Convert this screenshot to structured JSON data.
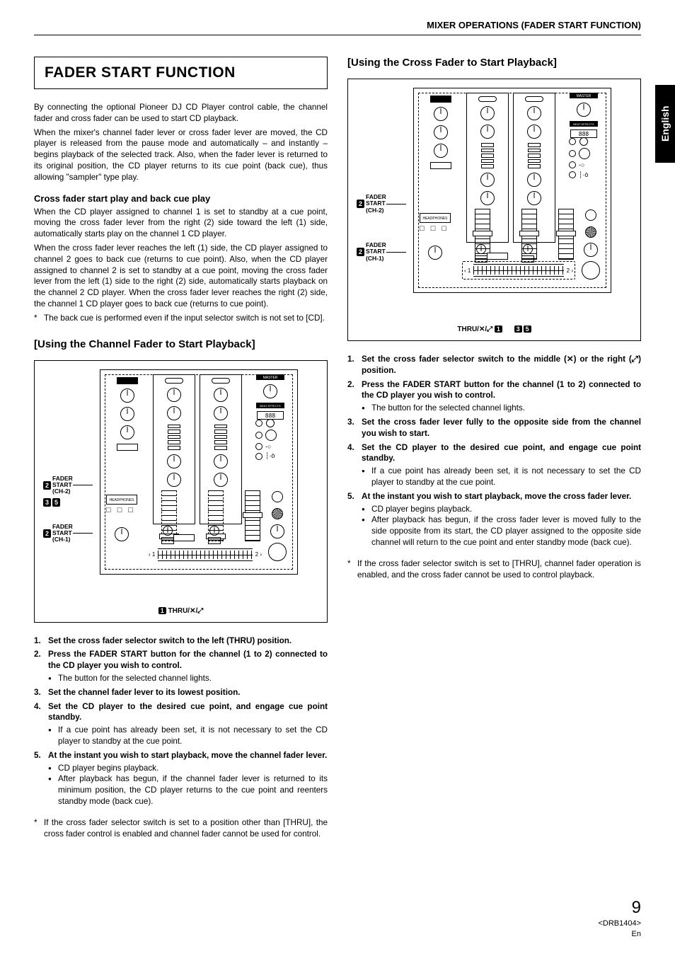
{
  "header": "MIXER OPERATIONS (FADER START FUNCTION)",
  "sideTab": "English",
  "footer": {
    "pageNum": "9",
    "model": "<DRB1404>",
    "lang": "En"
  },
  "left": {
    "title": "FADER START FUNCTION",
    "intro1": "By connecting the optional Pioneer DJ CD Player control cable, the channel fader and cross fader can be used to start CD playback.",
    "intro2": "When the mixer's channel fader lever or cross fader lever are moved, the CD player is released from the pause mode and automatically – and instantly – begins playback of the selected track. Also, when the fader lever is returned to its original position, the CD player returns to its cue point (back cue), thus allowing \"sampler\" type play.",
    "sub1": "Cross fader start play and back cue play",
    "para1": "When the CD player assigned to channel 1 is set to standby at a cue point, moving the cross fader lever from the right (2) side toward the left (1) side, automatically starts play on the channel 1 CD player.",
    "para2": "When the cross fader lever reaches the left (1) side, the CD player assigned to channel 2 goes to back cue (returns to cue point). Also, when the CD player assigned to channel 2 is set to standby at a cue point, moving the cross fader lever from the left (1) side to the right (2) side, automatically starts playback on the channel 2 CD player. When the cross fader lever reaches the right (2) side, the channel 1 CD player goes to back cue (returns to cue point).",
    "note1": "The back cue is performed even if the input selector switch is not set to [CD].",
    "h2": "[Using the Channel Fader to Start Playback]",
    "diagram": {
      "callouts": {
        "faderStartCh2": "FADER\nSTART\n(CH-2)",
        "faderStartCh1": "FADER\nSTART\n(CH-1)"
      },
      "caption_num": "1",
      "caption_text": "THRU/✕/⤢",
      "callout35": "3 5",
      "seg": "888",
      "masterLabel": "MASTER",
      "micLabel": "MIC",
      "beatLabel": "BEAT EFFECTS",
      "hp": "HEADPHONES",
      "hpBtns": "□ □ □",
      "cf1": "1",
      "cf2": "2"
    },
    "steps": [
      {
        "main": "Set the cross fader selector switch to the left (THRU) position."
      },
      {
        "main": "Press the FADER START button for the channel (1 to 2) connected to the CD player you wish to control.",
        "bul": [
          "The button for the selected channel lights."
        ]
      },
      {
        "main": "Set the channel fader lever to its lowest position."
      },
      {
        "main": "Set the CD player to the desired cue point, and engage cue point standby.",
        "bul": [
          "If a cue point has already been set, it is not necessary to set the CD player to standby at the cue point."
        ]
      },
      {
        "main": "At the instant you wish to start playback, move the channel fader lever.",
        "bul": [
          "CD player begins playback.",
          "After playback has begun, if the channel fader lever is returned to its minimum position, the CD player returns to the cue point and reenters standby mode (back cue)."
        ]
      }
    ],
    "foot": "If the cross fader selector switch is set to a position other than [THRU], the cross fader control is enabled and channel fader cannot be used for control."
  },
  "right": {
    "h2": "[Using the Cross Fader to Start Playback]",
    "diagram": {
      "callouts": {
        "faderStartCh2": "FADER\nSTART\n(CH-2)",
        "faderStartCh1": "FADER\nSTART\n(CH-1)"
      },
      "caption_text": "THRU/✕/⤢",
      "caption_num1": "1",
      "caption_num35": "3 5",
      "seg": "888",
      "masterLabel": "MASTER",
      "micLabel": "MIC",
      "beatLabel": "BEAT EFFECTS",
      "hp": "HEADPHONES",
      "hpBtns": "□ □ □",
      "cf1": "1",
      "cf2": "2"
    },
    "steps": [
      {
        "main": "Set the cross fader selector switch to the middle (✕) or the right (⤢) position."
      },
      {
        "main": "Press the FADER START button for the channel (1 to 2) connected to the CD player you wish to control.",
        "bul": [
          "The button for the selected channel lights."
        ]
      },
      {
        "main": "Set the cross fader lever fully to the opposite side from the channel you wish to start."
      },
      {
        "main": "Set the CD player to the desired cue point, and engage cue point standby.",
        "bul": [
          "If a cue point has already been set, it is not necessary to set the CD player to standby at the cue point."
        ]
      },
      {
        "main": "At the instant you wish to start playback, move the cross fader lever.",
        "bul": [
          "CD player begins playback.",
          "After playback has begun, if the cross fader lever is moved fully to the side opposite from its start, the CD player assigned to the opposite side channel will return to the cue point and enter standby mode (back cue)."
        ]
      }
    ],
    "foot": "If the cross fader selector switch is set to [THRU], channel fader operation is enabled, and the cross fader cannot be used to control playback."
  }
}
